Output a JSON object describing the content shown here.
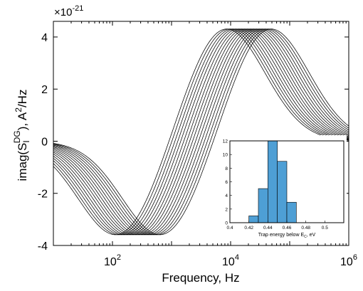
{
  "chart_data": [
    {
      "type": "line",
      "title": "",
      "xlabel": "Frequency, Hz",
      "ylabel": "imag(S_I^DG), A^2/Hz",
      "ylabel_parts": {
        "pre": "imag(S",
        "sub": "I",
        "sup": "DG",
        "post": "), A",
        "sup2": "2",
        "post2": "/Hz"
      },
      "x_scale": "log",
      "xlim": [
        10,
        1000000
      ],
      "ylim": [
        -4,
        4.6
      ],
      "y_exponent_label": "×10",
      "y_exponent_power": "-21",
      "xticks": [
        {
          "value": 100,
          "base": "10",
          "exp": "2"
        },
        {
          "value": 10000,
          "base": "10",
          "exp": "4"
        },
        {
          "value": 1000000,
          "base": "10",
          "exp": "6"
        }
      ],
      "yticks": [
        {
          "value": -4,
          "label": "-4"
        },
        {
          "value": -2,
          "label": "-2"
        },
        {
          "value": 0,
          "label": "0"
        },
        {
          "value": 2,
          "label": "2"
        },
        {
          "value": 4,
          "label": "4"
        }
      ],
      "grid": false,
      "legend": "none",
      "series_model": "Debye-like Lorentzian difference curves, one per trap energy; peak/trough magnitude about 4.4e-21 / -3.7e-21",
      "series_center_frequency_hz": [
        1000,
        1120,
        1260,
        1410,
        1580,
        1780,
        2000,
        2240,
        2510,
        2820,
        3160,
        3550,
        3980,
        4470,
        5010,
        5620
      ],
      "amplitude": 4.4,
      "trough_scale": 0.84
    },
    {
      "type": "bar",
      "title": "",
      "xlabel": "Trap energy below E_C, eV",
      "xlabel_parts": {
        "pre": "Trap energy below E",
        "sub": "C",
        "post": ", eV"
      },
      "ylabel": "",
      "xlim": [
        0.4,
        0.52
      ],
      "ylim": [
        0,
        12
      ],
      "xticks": [
        "0.4",
        "0.42",
        "0.44",
        "0.46",
        "0.48",
        "0.5"
      ],
      "yticks": [
        "0",
        "2",
        "4",
        "6",
        "8",
        "10",
        "12"
      ],
      "bins": [
        {
          "from": 0.42,
          "to": 0.43,
          "count": 1
        },
        {
          "from": 0.43,
          "to": 0.44,
          "count": 5
        },
        {
          "from": 0.44,
          "to": 0.45,
          "count": 12
        },
        {
          "from": 0.45,
          "to": 0.46,
          "count": 9
        },
        {
          "from": 0.46,
          "to": 0.47,
          "count": 3
        }
      ],
      "bar_color": "#4e9fd5"
    }
  ]
}
